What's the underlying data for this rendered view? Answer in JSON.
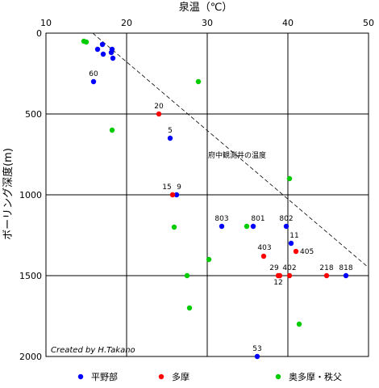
{
  "chart_data": {
    "type": "scatter",
    "xlabel": "泉温（℃）",
    "ylabel": "ボーリング深度(m)",
    "xlim": [
      10,
      50
    ],
    "ylim": [
      0,
      2000
    ],
    "y_inverted": true,
    "x_axis_position": "top",
    "xticks": [
      10,
      20,
      30,
      40,
      50
    ],
    "yticks": [
      0,
      500,
      1000,
      1500,
      2000
    ],
    "grid": true,
    "credit": "Created by H.Takano",
    "reference_line": {
      "label": "府中観測井の温度",
      "points": [
        [
          15.8,
          0
        ],
        [
          50,
          1450
        ]
      ],
      "style": "dashed"
    },
    "series": [
      {
        "name": "平野部",
        "color": "#0000ff",
        "points": [
          {
            "x": 17.0,
            "y": 70
          },
          {
            "x": 18.2,
            "y": 100
          },
          {
            "x": 16.4,
            "y": 100
          },
          {
            "x": 18.1,
            "y": 120
          },
          {
            "x": 17.1,
            "y": 130
          },
          {
            "x": 18.3,
            "y": 155
          },
          {
            "x": 15.9,
            "y": 300,
            "label": "60"
          },
          {
            "x": 25.4,
            "y": 650,
            "label": "5"
          },
          {
            "x": 26.2,
            "y": 1000,
            "label": "9"
          },
          {
            "x": 31.8,
            "y": 1195,
            "label": "803"
          },
          {
            "x": 35.7,
            "y": 1195,
            "label": "801"
          },
          {
            "x": 39.8,
            "y": 1195,
            "label": "802"
          },
          {
            "x": 40.4,
            "y": 1300,
            "label": "11"
          },
          {
            "x": 47.2,
            "y": 1500,
            "label": "818"
          },
          {
            "x": 36.2,
            "y": 2000,
            "label": "53"
          }
        ]
      },
      {
        "name": "多摩",
        "color": "#ff0000",
        "points": [
          {
            "x": 24.0,
            "y": 500,
            "label": "20"
          },
          {
            "x": 25.7,
            "y": 1000,
            "label": "15"
          },
          {
            "x": 37.0,
            "y": 1380,
            "label": "403"
          },
          {
            "x": 41.0,
            "y": 1350,
            "label": "405"
          },
          {
            "x": 39.0,
            "y": 1500,
            "label": "29"
          },
          {
            "x": 38.8,
            "y": 1500,
            "label": "12"
          },
          {
            "x": 40.2,
            "y": 1500,
            "label": "402"
          },
          {
            "x": 44.8,
            "y": 1500,
            "label": "218"
          }
        ]
      },
      {
        "name": "奥多摩・秩父",
        "color": "#00cc00",
        "points": [
          {
            "x": 14.7,
            "y": 50
          },
          {
            "x": 15.0,
            "y": 55
          },
          {
            "x": 28.9,
            "y": 300
          },
          {
            "x": 18.2,
            "y": 600
          },
          {
            "x": 40.2,
            "y": 900
          },
          {
            "x": 25.9,
            "y": 1200
          },
          {
            "x": 34.9,
            "y": 1195
          },
          {
            "x": 30.2,
            "y": 1400
          },
          {
            "x": 27.5,
            "y": 1500
          },
          {
            "x": 27.8,
            "y": 1700
          },
          {
            "x": 41.4,
            "y": 1800
          }
        ]
      }
    ]
  }
}
